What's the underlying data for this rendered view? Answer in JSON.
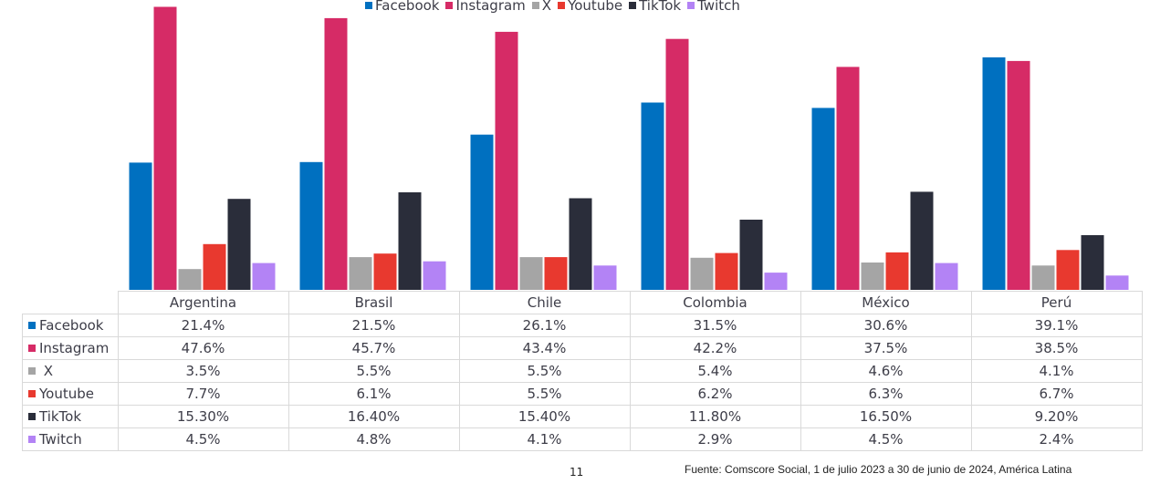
{
  "chart_data": {
    "type": "bar",
    "title": "",
    "xlabel": "",
    "ylabel": "",
    "ylim": [
      0,
      50
    ],
    "legend_position": "top-center",
    "categories": [
      "Argentina",
      "Brasil",
      "Chile",
      "Colombia",
      "México",
      "Perú"
    ],
    "series": [
      {
        "name": "Facebook",
        "color": "#0070c0",
        "values": [
          21.4,
          21.5,
          26.1,
          31.5,
          30.6,
          39.1
        ],
        "labels": [
          "21.4%",
          "21.5%",
          "26.1%",
          "31.5%",
          "30.6%",
          "39.1%"
        ]
      },
      {
        "name": "Instagram",
        "color": "#d62b66",
        "values": [
          47.6,
          45.7,
          43.4,
          42.2,
          37.5,
          38.5
        ],
        "labels": [
          "47.6%",
          "45.7%",
          "43.4%",
          "42.2%",
          "37.5%",
          "38.5%"
        ]
      },
      {
        "name": "X",
        "color": "#a5a5a5",
        "values": [
          3.5,
          5.5,
          5.5,
          5.4,
          4.6,
          4.1
        ],
        "labels": [
          "3.5%",
          "5.5%",
          "5.5%",
          "5.4%",
          "4.6%",
          "4.1%"
        ]
      },
      {
        "name": "Youtube",
        "color": "#e8392f",
        "values": [
          7.7,
          6.1,
          5.5,
          6.2,
          6.3,
          6.7
        ],
        "labels": [
          "7.7%",
          "6.1%",
          "5.5%",
          "6.2%",
          "6.3%",
          "6.7%"
        ]
      },
      {
        "name": "TikTok",
        "color": "#2a2d3a",
        "values": [
          15.3,
          16.4,
          15.4,
          11.8,
          16.5,
          9.2
        ],
        "labels": [
          "15.30%",
          "16.40%",
          "15.40%",
          "11.80%",
          "16.50%",
          "9.20%"
        ]
      },
      {
        "name": "Twitch",
        "color": "#b383f5",
        "values": [
          4.5,
          4.8,
          4.1,
          2.9,
          4.5,
          2.4
        ],
        "labels": [
          "4.5%",
          "4.8%",
          "4.1%",
          "2.9%",
          "4.5%",
          "2.4%"
        ]
      }
    ]
  },
  "footer": {
    "page_number": "11",
    "source": "Fuente: Comscore Social, 1 de julio 2023 a 30 de junio de 2024, América Latina"
  }
}
